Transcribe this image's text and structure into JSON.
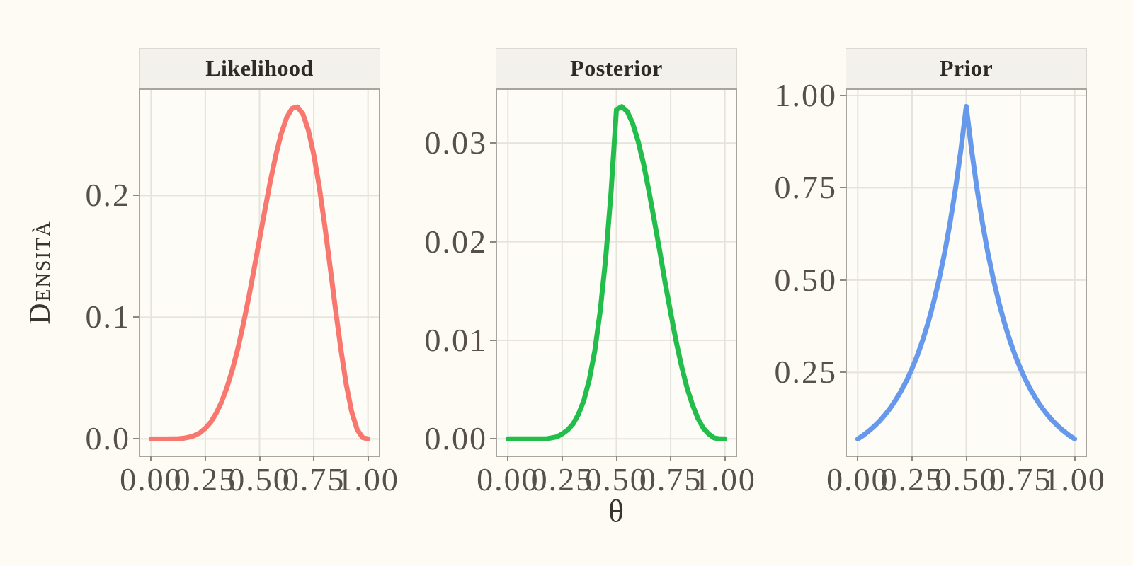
{
  "figure": {
    "y_axis_title": "Densità",
    "x_axis_title": "θ"
  },
  "style": {
    "page_background": "#FDFBF3",
    "panel_background": "#FDFCF6",
    "strip_background": "#F2F1EB",
    "strip_border": "#DBD9D1",
    "panel_border": "#A9A59E",
    "gridline_color": "#E5E3DB",
    "tick_mark_color": "#8C8880",
    "tick_label_color": "#57504A",
    "axis_title_color": "#3A342E",
    "likelihood_color": "#F8776F",
    "posterior_color": "#22BD4B",
    "prior_color": "#6699EC"
  },
  "chart_data": [
    {
      "type": "line",
      "name": "likelihood",
      "title": "Likelihood",
      "color": "#F8776F",
      "xlabel": "θ",
      "ylabel": "Densità",
      "grid": "major",
      "legend": "none",
      "xlim": [
        -0.05,
        1.05
      ],
      "ylim": [
        -0.0137,
        0.2868
      ],
      "x_ticks": [
        0,
        0.25,
        0.5,
        0.75,
        1
      ],
      "x_tick_labels": [
        "0.00",
        "0.25",
        "0.50",
        "0.75",
        "1.00"
      ],
      "y_ticks": [
        0,
        0.1,
        0.2
      ],
      "y_tick_labels": [
        "0.0",
        "0.1",
        "0.2"
      ],
      "x": [
        0,
        0.025,
        0.05,
        0.075,
        0.1,
        0.125,
        0.15,
        0.175,
        0.2,
        0.225,
        0.25,
        0.275,
        0.3,
        0.325,
        0.35,
        0.375,
        0.4,
        0.425,
        0.45,
        0.475,
        0.5,
        0.525,
        0.55,
        0.575,
        0.6,
        0.625,
        0.65,
        0.675,
        0.7,
        0.725,
        0.75,
        0.775,
        0.8,
        0.825,
        0.85,
        0.875,
        0.9,
        0.925,
        0.95,
        0.975,
        1
      ],
      "y": [
        0,
        0,
        0,
        0,
        0.0001,
        0.0002,
        0.0006,
        0.0014,
        0.0028,
        0.0051,
        0.0087,
        0.0138,
        0.021,
        0.0304,
        0.0424,
        0.057,
        0.0743,
        0.0941,
        0.1161,
        0.1396,
        0.1641,
        0.1885,
        0.2119,
        0.2331,
        0.2508,
        0.264,
        0.2716,
        0.2728,
        0.2668,
        0.2537,
        0.2336,
        0.2073,
        0.1762,
        0.1418,
        0.1069,
        0.0736,
        0.0446,
        0.0222,
        0.0077,
        0.0011,
        0
      ]
    },
    {
      "type": "line",
      "name": "posterior",
      "title": "Posterior",
      "color": "#22BD4B",
      "xlabel": "θ",
      "ylabel": "Densità",
      "grid": "major",
      "legend": "none",
      "xlim": [
        -0.05,
        1.05
      ],
      "ylim": [
        -0.0017,
        0.0354
      ],
      "x_ticks": [
        0,
        0.25,
        0.5,
        0.75,
        1
      ],
      "x_tick_labels": [
        "0.00",
        "0.25",
        "0.50",
        "0.75",
        "1.00"
      ],
      "y_ticks": [
        0,
        0.01,
        0.02,
        0.03
      ],
      "y_tick_labels": [
        "0.00",
        "0.01",
        "0.02",
        "0.03"
      ],
      "x": [
        0,
        0.025,
        0.05,
        0.075,
        0.1,
        0.125,
        0.15,
        0.175,
        0.2,
        0.225,
        0.25,
        0.275,
        0.3,
        0.325,
        0.35,
        0.375,
        0.4,
        0.425,
        0.45,
        0.475,
        0.5,
        0.525,
        0.55,
        0.575,
        0.6,
        0.625,
        0.65,
        0.675,
        0.7,
        0.725,
        0.75,
        0.775,
        0.8,
        0.825,
        0.85,
        0.875,
        0.9,
        0.925,
        0.95,
        0.975,
        1
      ],
      "y": [
        0,
        0,
        0,
        0,
        0,
        0,
        0,
        0,
        0.0001,
        0.0002,
        0.0005,
        0.0009,
        0.0015,
        0.0025,
        0.0039,
        0.006,
        0.0089,
        0.0129,
        0.0182,
        0.0249,
        0.0334,
        0.0337,
        0.0332,
        0.032,
        0.0302,
        0.0279,
        0.0251,
        0.0221,
        0.019,
        0.0158,
        0.0128,
        0.0099,
        0.0074,
        0.0052,
        0.0035,
        0.0021,
        0.0011,
        0.0005,
        0.0001,
        0,
        0
      ]
    },
    {
      "type": "line",
      "name": "prior",
      "title": "Prior",
      "color": "#6699EC",
      "xlabel": "θ",
      "ylabel": "Densità",
      "grid": "major",
      "legend": "none",
      "xlim": [
        -0.05,
        1.05
      ],
      "ylim": [
        0.0248,
        1.015
      ],
      "x_ticks": [
        0,
        0.25,
        0.5,
        0.75,
        1
      ],
      "x_tick_labels": [
        "0.00",
        "0.25",
        "0.50",
        "0.75",
        "1.00"
      ],
      "y_ticks": [
        0.25,
        0.5,
        0.75,
        1
      ],
      "y_tick_labels": [
        "0.25",
        "0.50",
        "0.75",
        "1.00"
      ],
      "x": [
        0,
        0.025,
        0.05,
        0.075,
        0.1,
        0.125,
        0.15,
        0.175,
        0.2,
        0.225,
        0.25,
        0.275,
        0.3,
        0.325,
        0.35,
        0.375,
        0.4,
        0.425,
        0.45,
        0.475,
        0.5,
        0.525,
        0.55,
        0.575,
        0.6,
        0.625,
        0.65,
        0.675,
        0.7,
        0.725,
        0.75,
        0.775,
        0.8,
        0.825,
        0.85,
        0.875,
        0.9,
        0.925,
        0.95,
        0.975,
        1
      ],
      "y": [
        0.0698,
        0.0796,
        0.0908,
        0.1036,
        0.1181,
        0.1348,
        0.1537,
        0.1753,
        0.2,
        0.2281,
        0.2602,
        0.2968,
        0.3385,
        0.3862,
        0.4405,
        0.5024,
        0.5731,
        0.6536,
        0.7456,
        0.8504,
        0.97,
        0.8504,
        0.7456,
        0.6536,
        0.5731,
        0.5024,
        0.4405,
        0.3862,
        0.3385,
        0.2968,
        0.2602,
        0.2281,
        0.2,
        0.1753,
        0.1537,
        0.1348,
        0.1181,
        0.1036,
        0.0908,
        0.0796,
        0.0698
      ]
    }
  ]
}
